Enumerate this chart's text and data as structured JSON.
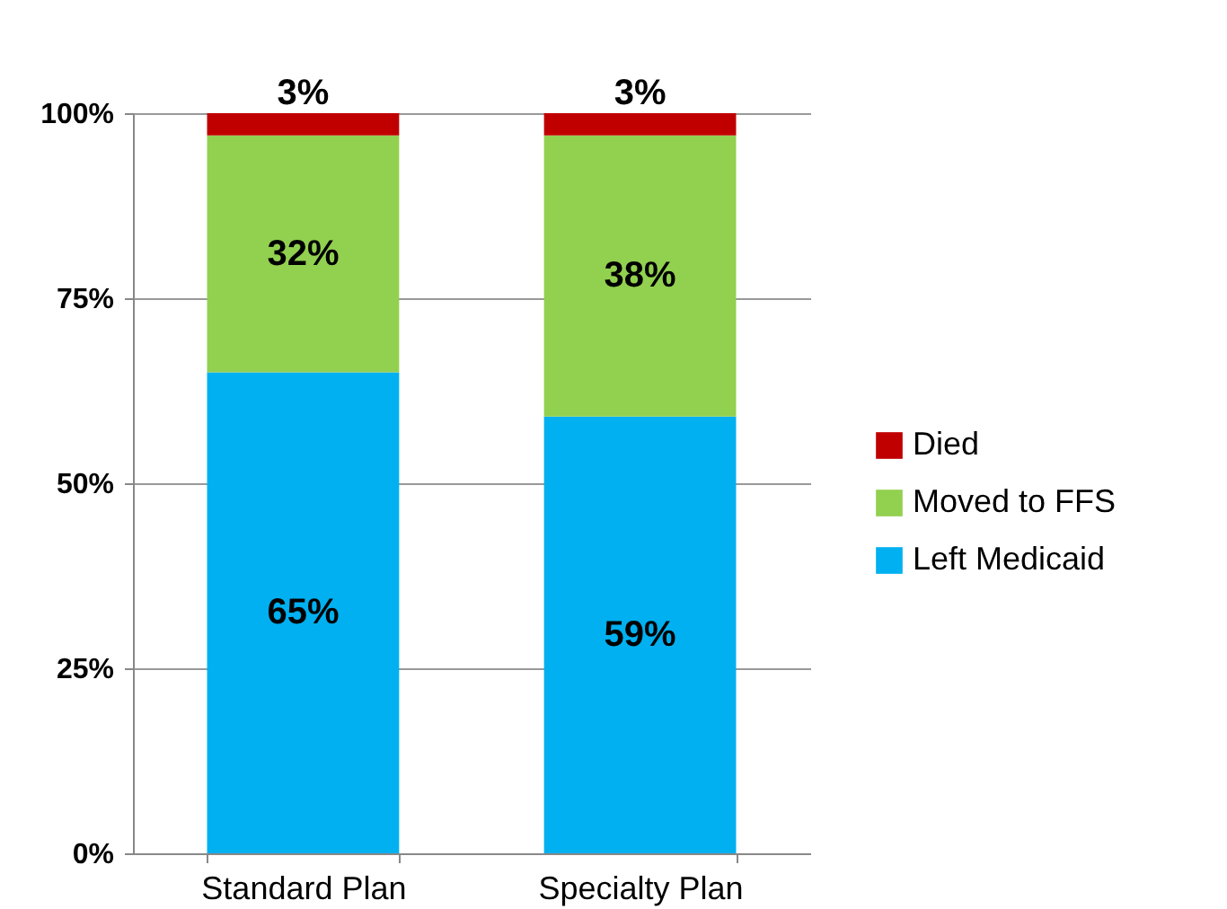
{
  "chart_data": {
    "type": "bar",
    "stacked": true,
    "categories": [
      "Standard Plan",
      "Specialty Plan"
    ],
    "series": [
      {
        "name": "Left Medicaid",
        "color": "#00b0f0",
        "values": [
          65,
          59
        ],
        "value_labels": [
          "65%",
          "59%"
        ]
      },
      {
        "name": "Moved to FFS",
        "color": "#92d050",
        "values": [
          32,
          38
        ],
        "value_labels": [
          "32%",
          "38%"
        ]
      },
      {
        "name": "Died",
        "color": "#c00000",
        "values": [
          3,
          3
        ],
        "value_labels": [
          "3%",
          "3%"
        ]
      }
    ],
    "ylim": [
      0,
      100
    ],
    "yticks": [
      {
        "value": 0,
        "label": "0%"
      },
      {
        "value": 25,
        "label": "25%"
      },
      {
        "value": 50,
        "label": "50%"
      },
      {
        "value": 75,
        "label": "75%"
      },
      {
        "value": 100,
        "label": "100%"
      }
    ],
    "grid": "y",
    "legend": "right"
  }
}
